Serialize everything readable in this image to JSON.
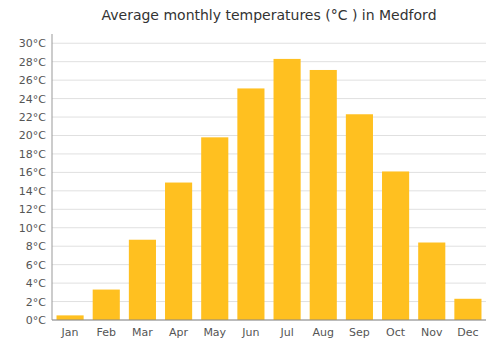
{
  "chart_data": {
    "type": "bar",
    "title": "Average monthly temperatures (°C ) in Medford",
    "categories": [
      "Jan",
      "Feb",
      "Mar",
      "Apr",
      "May",
      "Jun",
      "Jul",
      "Aug",
      "Sep",
      "Oct",
      "Nov",
      "Dec"
    ],
    "values": [
      0.5,
      3.3,
      8.7,
      14.9,
      19.8,
      25.1,
      28.3,
      27.1,
      22.3,
      16.1,
      8.4,
      2.3
    ],
    "color": "#FFC020",
    "ylim": [
      0,
      31
    ],
    "yticks": [
      {
        "value": 0,
        "label": "0°C"
      },
      {
        "value": 2,
        "label": "2°C"
      },
      {
        "value": 4,
        "label": "4°C"
      },
      {
        "value": 6,
        "label": "6°C"
      },
      {
        "value": 8,
        "label": "8°C"
      },
      {
        "value": 10,
        "label": "10°C"
      },
      {
        "value": 12,
        "label": "12°C"
      },
      {
        "value": 14,
        "label": "14°C"
      },
      {
        "value": 16,
        "label": "16°C"
      },
      {
        "value": 18,
        "label": "18°C"
      },
      {
        "value": 20,
        "label": "20°C"
      },
      {
        "value": 22,
        "label": "22°C"
      },
      {
        "value": 24,
        "label": "24°C"
      },
      {
        "value": 26,
        "label": "26°C"
      },
      {
        "value": 28,
        "label": "28°C"
      },
      {
        "value": 30,
        "label": "30°C"
      }
    ],
    "grid": true
  }
}
